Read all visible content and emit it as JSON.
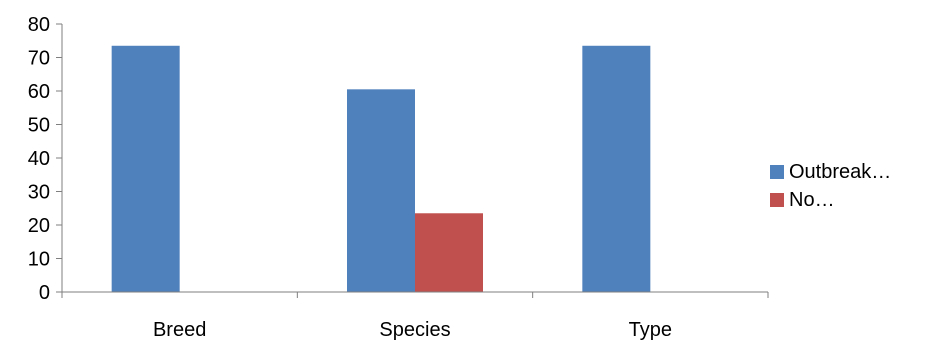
{
  "chart_data": {
    "type": "bar",
    "categories": [
      "Breed",
      "Species",
      "Type"
    ],
    "series": [
      {
        "name": "Outbreak…",
        "values": [
          73.5,
          60.5,
          73.5
        ]
      },
      {
        "name": "No…",
        "values": [
          null,
          23.5,
          null
        ]
      }
    ],
    "title": "",
    "xlabel": "",
    "ylabel": "",
    "ylim": [
      0,
      80
    ],
    "yticks": [
      "0",
      "10",
      "20",
      "30",
      "40",
      "50",
      "60",
      "70",
      "80"
    ],
    "grid": false,
    "legend_position": "right",
    "colors": {
      "Outbreak…": "#4F81BD",
      "No…": "#C0504D",
      "axis": "#7F7F7F",
      "text": "#000000"
    }
  }
}
